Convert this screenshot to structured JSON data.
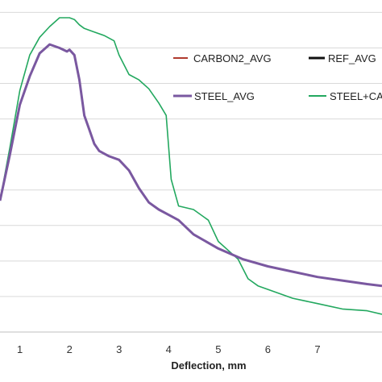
{
  "chart_data": {
    "type": "line",
    "title": "",
    "xlabel": "Deflection, mm",
    "ylabel": "",
    "xlim": [
      0.6,
      8.3
    ],
    "ylim": [
      0,
      9.35
    ],
    "grid": true,
    "x_ticks": [
      "1",
      "2",
      "3",
      "4",
      "5",
      "6",
      "7"
    ],
    "legend_position": "top-right",
    "series": [
      {
        "name": "CARBON2_AVG",
        "color": "#b03a2e",
        "x": [],
        "y": []
      },
      {
        "name": "REF_AVG",
        "color": "#111111",
        "x": [],
        "y": []
      },
      {
        "name": "STEEL_AVG",
        "color": "#7a58a0",
        "x": [
          0.6,
          0.8,
          1.0,
          1.2,
          1.4,
          1.6,
          1.8,
          1.95,
          2.0,
          2.1,
          2.2,
          2.3,
          2.4,
          2.5,
          2.6,
          2.8,
          3.0,
          3.2,
          3.4,
          3.6,
          3.8,
          4.0,
          4.2,
          4.5,
          5.0,
          5.5,
          6.0,
          6.5,
          7.0,
          7.5,
          8.0,
          8.3
        ],
        "y": [
          3.7,
          5.0,
          6.4,
          7.2,
          7.85,
          8.1,
          8.0,
          7.9,
          7.95,
          7.8,
          7.1,
          6.1,
          5.7,
          5.3,
          5.1,
          4.95,
          4.85,
          4.55,
          4.05,
          3.65,
          3.45,
          3.3,
          3.15,
          2.75,
          2.35,
          2.05,
          1.85,
          1.7,
          1.55,
          1.45,
          1.35,
          1.3
        ]
      },
      {
        "name": "STEEL+CAR",
        "color": "#23a85f",
        "x": [
          0.6,
          0.8,
          1.0,
          1.2,
          1.4,
          1.6,
          1.8,
          2.0,
          2.1,
          2.2,
          2.3,
          2.5,
          2.7,
          2.9,
          3.0,
          3.2,
          3.4,
          3.6,
          3.8,
          3.95,
          4.05,
          4.2,
          4.5,
          4.8,
          5.0,
          5.2,
          5.4,
          5.6,
          5.8,
          6.0,
          6.5,
          7.0,
          7.5,
          8.0,
          8.3
        ],
        "y": [
          3.7,
          5.2,
          6.8,
          7.8,
          8.3,
          8.6,
          8.85,
          8.85,
          8.8,
          8.65,
          8.55,
          8.45,
          8.35,
          8.2,
          7.8,
          7.25,
          7.1,
          6.85,
          6.45,
          6.1,
          4.3,
          3.55,
          3.45,
          3.15,
          2.55,
          2.3,
          2.05,
          1.5,
          1.3,
          1.2,
          0.95,
          0.8,
          0.65,
          0.6,
          0.5
        ]
      }
    ]
  }
}
